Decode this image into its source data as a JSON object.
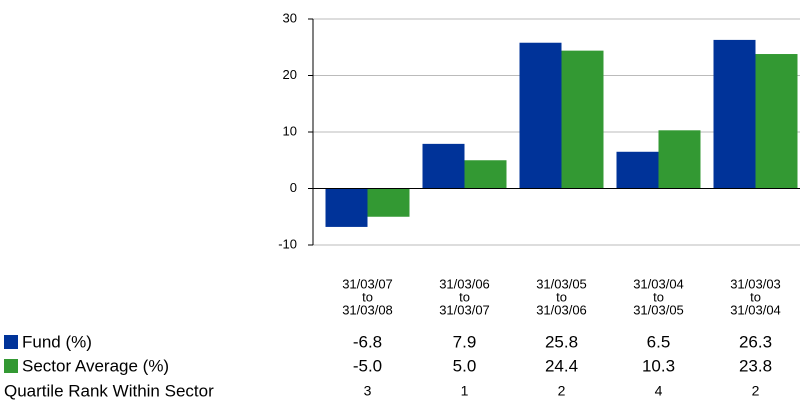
{
  "chart_data": {
    "type": "bar",
    "categories": [
      [
        "31/03/07",
        "to",
        "31/03/08"
      ],
      [
        "31/03/06",
        "to",
        "31/03/07"
      ],
      [
        "31/03/05",
        "to",
        "31/03/06"
      ],
      [
        "31/03/04",
        "to",
        "31/03/05"
      ],
      [
        "31/03/03",
        "to",
        "31/03/04"
      ]
    ],
    "series": [
      {
        "name": "Fund (%)",
        "color": "#003399",
        "values": [
          -6.8,
          7.9,
          25.8,
          6.5,
          26.3
        ]
      },
      {
        "name": "Sector Average (%)",
        "color": "#339933",
        "values": [
          -5.0,
          5.0,
          24.4,
          10.3,
          23.8
        ],
        "value_labels": [
          "-5.0",
          "5.0",
          "24.4",
          "10.3",
          "23.8"
        ]
      }
    ],
    "quartile_rank": {
      "name": "Quartile Rank Within Sector",
      "values": [
        3,
        1,
        2,
        4,
        2
      ]
    },
    "ylim": [
      -10,
      30
    ],
    "yticks": [
      -10,
      0,
      10,
      20,
      30
    ],
    "grid": true
  }
}
